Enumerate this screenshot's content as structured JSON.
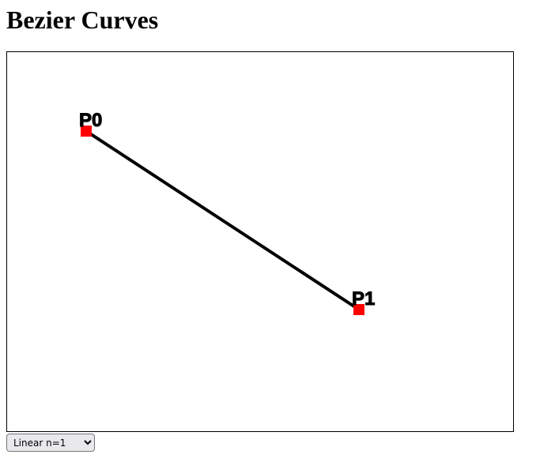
{
  "page": {
    "title": "Bezier Curves"
  },
  "curve": {
    "type": "linear",
    "degree": 1,
    "stroke_color": "#000000",
    "point_color": "#ff0000",
    "points": [
      {
        "label": "P0",
        "x": 100,
        "y": 100
      },
      {
        "label": "P1",
        "x": 445,
        "y": 326
      }
    ]
  },
  "controls": {
    "curve_type": {
      "selected": "Linear n=1"
    }
  }
}
